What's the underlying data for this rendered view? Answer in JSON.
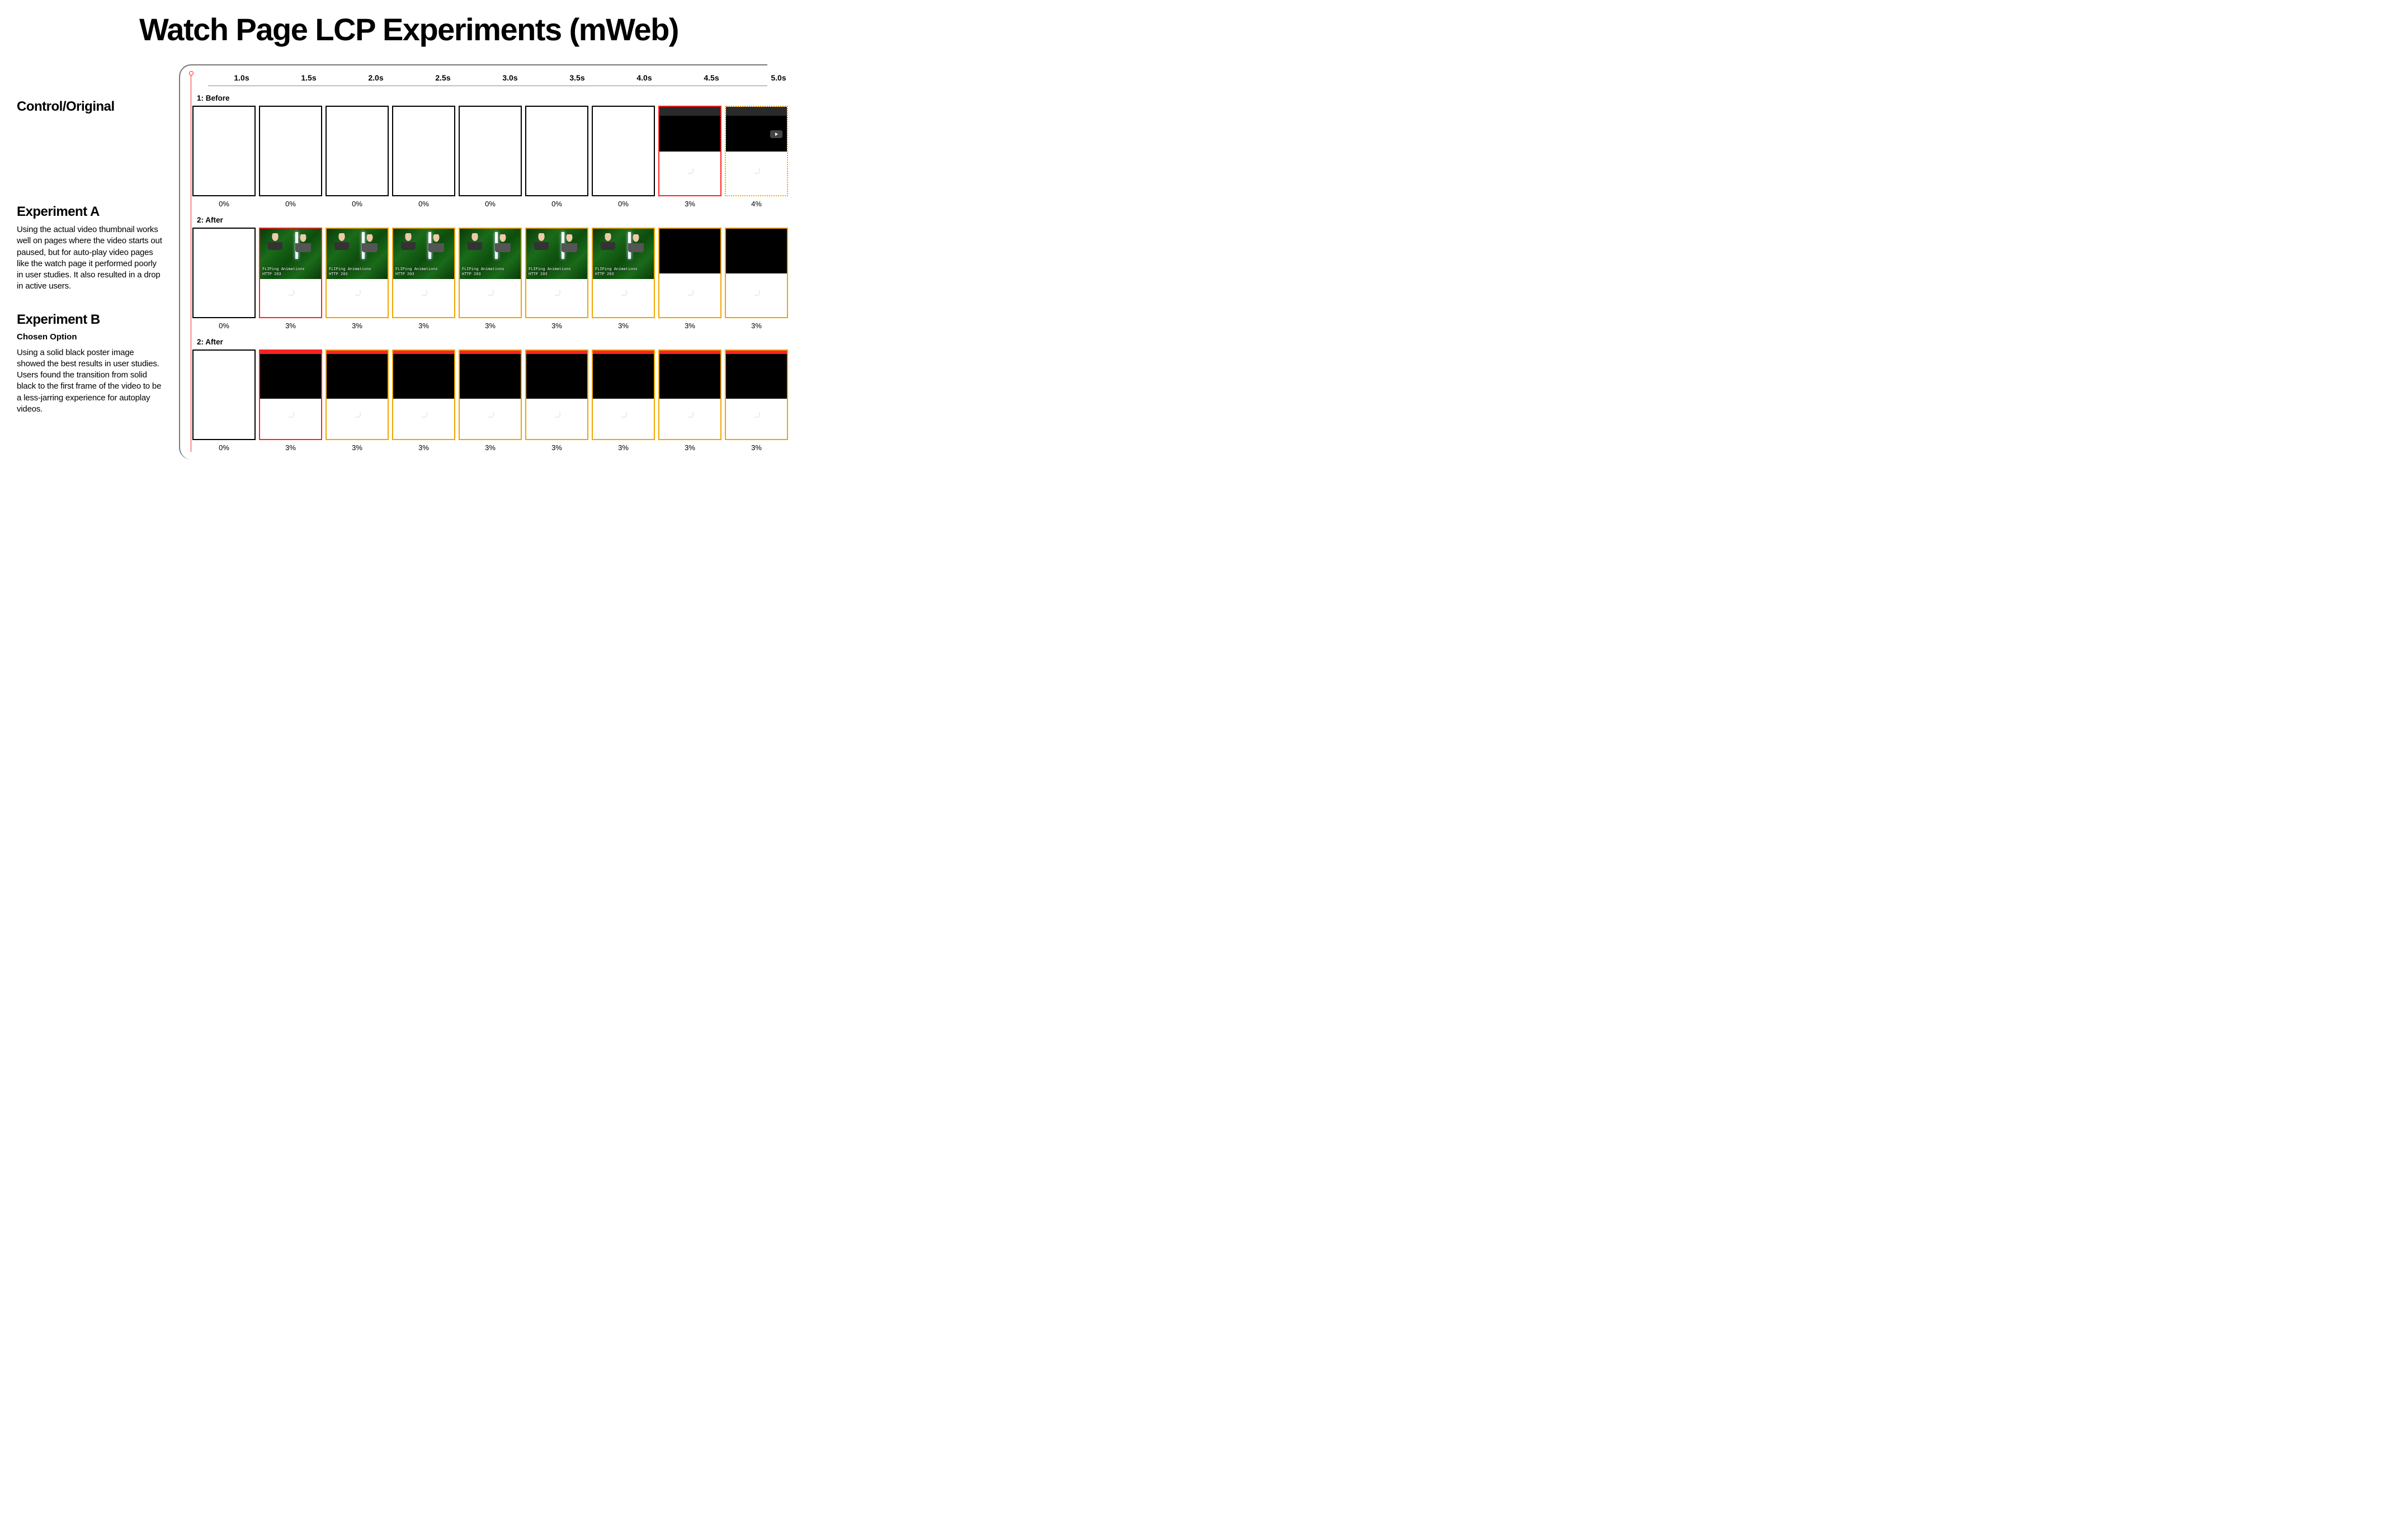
{
  "title": "Watch Page LCP Experiments (mWeb)",
  "sidebar": {
    "control": {
      "heading": "Control/Original"
    },
    "expA": {
      "heading": "Experiment A",
      "body": "Using the actual video thumbnail works well on pages where the video starts out paused, but for auto-play video pages like the watch page it performed poorly in user studies. It also resulted in a drop in active users."
    },
    "expB": {
      "heading": "Experiment B",
      "sub": "Chosen Option",
      "body": "Using a solid black poster image showed the best results in user studies. Users found the transition from solid black to the first frame of the video to be a less-jarring experience for autoplay videos."
    }
  },
  "timeline": {
    "ticks": [
      "1.0s",
      "1.5s",
      "2.0s",
      "2.5s",
      "3.0s",
      "3.5s",
      "4.0s",
      "4.5s",
      "5.0s"
    ],
    "colors": {
      "black": "#000000",
      "red": "#ff2222",
      "orange": "#f0a500",
      "axis": "#888888",
      "thumb_bg": "#0d4d0d"
    },
    "rows": [
      {
        "label": "1: Before",
        "frames": [
          {
            "type": "blank",
            "border": "black",
            "pct": "0%"
          },
          {
            "type": "blank",
            "border": "black",
            "pct": "0%"
          },
          {
            "type": "blank",
            "border": "black",
            "pct": "0%"
          },
          {
            "type": "blank",
            "border": "black",
            "pct": "0%"
          },
          {
            "type": "blank",
            "border": "black",
            "pct": "0%"
          },
          {
            "type": "blank",
            "border": "black",
            "pct": "0%"
          },
          {
            "type": "blank",
            "border": "black",
            "pct": "0%"
          },
          {
            "type": "partial-header",
            "border": "red",
            "pct": "3%"
          },
          {
            "type": "partial-play",
            "border": "orange-dotted",
            "pct": "4%"
          }
        ]
      },
      {
        "label": "2: After",
        "frames": [
          {
            "type": "blank",
            "border": "black",
            "pct": "0%"
          },
          {
            "type": "thumb",
            "border": "red",
            "pct": "3%"
          },
          {
            "type": "thumb",
            "border": "orange",
            "pct": "3%"
          },
          {
            "type": "thumb",
            "border": "orange",
            "pct": "3%"
          },
          {
            "type": "thumb",
            "border": "orange",
            "pct": "3%"
          },
          {
            "type": "thumb",
            "border": "orange",
            "pct": "3%"
          },
          {
            "type": "thumb",
            "border": "orange",
            "pct": "3%"
          },
          {
            "type": "black-video",
            "border": "orange",
            "pct": "3%"
          },
          {
            "type": "black-video",
            "border": "orange",
            "pct": "3%"
          }
        ]
      },
      {
        "label": "2: After",
        "frames": [
          {
            "type": "blank",
            "border": "black",
            "pct": "0%"
          },
          {
            "type": "black-poster",
            "border": "red",
            "pct": "3%"
          },
          {
            "type": "black-poster",
            "border": "orange",
            "pct": "3%"
          },
          {
            "type": "black-poster",
            "border": "orange",
            "pct": "3%"
          },
          {
            "type": "black-poster",
            "border": "orange",
            "pct": "3%"
          },
          {
            "type": "black-poster",
            "border": "orange",
            "pct": "3%"
          },
          {
            "type": "black-poster",
            "border": "orange",
            "pct": "3%"
          },
          {
            "type": "black-poster",
            "border": "orange",
            "pct": "3%"
          },
          {
            "type": "black-poster",
            "border": "orange",
            "pct": "3%"
          }
        ]
      }
    ],
    "thumb_caption": {
      "line1": "FLIPing Animations",
      "line2": "HTTP 203"
    }
  }
}
